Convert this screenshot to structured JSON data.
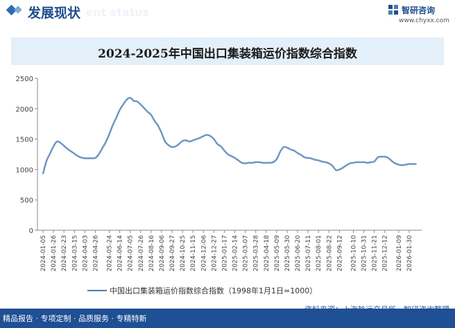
{
  "header": {
    "section_title": "发展现状",
    "watermark_text": "ent status",
    "brand_name": "智研咨询",
    "brand_url": "www.chyxx.com",
    "brand_color": "#1f4e8c"
  },
  "footer": {
    "tagline": "精品报告 · 专项定制 · 品质服务 · 专精特新",
    "source": "资料来源：上海航运交易所、智研咨询整理",
    "bg_color": "#1f4f94"
  },
  "chart_data": {
    "type": "line",
    "title": "2024-2025年中国出口集装箱运价指数综合指数",
    "xlabel": "",
    "ylabel": "",
    "ylim": [
      0,
      2500
    ],
    "yticks": [
      0,
      500,
      1000,
      1500,
      2000,
      2500
    ],
    "grid": false,
    "legend_position": "bottom",
    "line_color": "#6e96c4",
    "x": [
      "2024-01-05",
      "2024-01-12",
      "2024-01-19",
      "2024-01-26",
      "2024-02-02",
      "2024-02-09",
      "2024-02-23",
      "2024-03-01",
      "2024-03-08",
      "2024-03-15",
      "2024-03-22",
      "2024-03-29",
      "2024-04-03",
      "2024-04-12",
      "2024-04-19",
      "2024-04-26",
      "2024-04-30",
      "2024-05-11",
      "2024-05-17",
      "2024-05-24",
      "2024-05-31",
      "2024-06-07",
      "2024-06-14",
      "2024-06-21",
      "2024-06-28",
      "2024-07-05",
      "2024-07-12",
      "2024-07-19",
      "2024-07-26",
      "2024-08-02",
      "2024-08-09",
      "2024-08-16",
      "2024-08-23",
      "2024-08-30",
      "2024-09-06",
      "2024-09-13",
      "2024-09-20",
      "2024-09-27",
      "2024-10-11",
      "2024-10-18",
      "2024-10-25",
      "2024-11-01",
      "2024-11-08",
      "2024-11-15",
      "2024-11-22",
      "2024-11-29",
      "2024-12-06",
      "2024-12-13",
      "2024-12-20",
      "2024-12-27",
      "2025-01-03",
      "2025-01-10",
      "2025-01-17",
      "2025-01-24",
      "2025-02-07",
      "2025-02-14",
      "2025-02-21",
      "2025-02-28",
      "2025-03-07",
      "2025-03-14",
      "2025-03-21",
      "2025-03-28",
      "2025-04-03",
      "2025-04-11",
      "2025-04-18",
      "2025-04-25",
      "2025-04-30",
      "2025-05-09",
      "2025-05-16",
      "2025-05-23",
      "2025-05-30",
      "2025-06-06",
      "2025-06-13",
      "2025-06-20",
      "2025-06-27",
      "2025-07-04",
      "2025-07-11",
      "2025-07-18",
      "2025-07-25",
      "2025-08-01",
      "2025-08-08",
      "2025-08-15",
      "2025-08-22",
      "2025-08-29",
      "2025-09-05",
      "2025-09-12",
      "2025-09-19",
      "2025-09-26",
      "2025-09-30",
      "2025-10-10",
      "2025-10-17",
      "2025-10-24",
      "2025-10-31",
      "2025-11-07",
      "2025-11-14",
      "2025-11-21",
      "2025-11-28",
      "2025-12-05",
      "2025-12-12",
      "2025-12-19",
      "2025-12-26",
      "2026-01-01",
      "2026-01-09",
      "2026-01-16",
      "2026-01-23",
      "2026-01-30",
      "2026-02-06",
      "2026-02-13"
    ],
    "series": [
      {
        "name": "中国出口集装箱运价指数综合指数（1998年1月1日=1000）",
        "values": [
          930,
          1140,
          1260,
          1380,
          1460,
          1440,
          1390,
          1340,
          1300,
          1260,
          1220,
          1195,
          1185,
          1185,
          1185,
          1190,
          1250,
          1350,
          1450,
          1580,
          1730,
          1850,
          1980,
          2070,
          2150,
          2180,
          2130,
          2120,
          2070,
          2010,
          1950,
          1900,
          1800,
          1720,
          1600,
          1460,
          1400,
          1370,
          1380,
          1420,
          1470,
          1480,
          1460,
          1480,
          1500,
          1520,
          1550,
          1570,
          1550,
          1500,
          1420,
          1380,
          1310,
          1250,
          1220,
          1190,
          1150,
          1110,
          1100,
          1110,
          1110,
          1120,
          1120,
          1110,
          1110,
          1110,
          1120,
          1170,
          1290,
          1370,
          1360,
          1330,
          1310,
          1270,
          1240,
          1200,
          1190,
          1180,
          1160,
          1150,
          1130,
          1120,
          1100,
          1060,
          990,
          1000,
          1030,
          1070,
          1100,
          1110,
          1120,
          1120,
          1120,
          1110,
          1120,
          1130,
          1200,
          1210,
          1210,
          1190,
          1140,
          1100,
          1080,
          1070,
          1080,
          1090,
          1090,
          1090
        ]
      }
    ],
    "xtick_labels": [
      "2024-01-05",
      "2024-01-26",
      "2024-02-23",
      "2024-03-15",
      "2024-04-03",
      "2024-04-26",
      "2024-05-24",
      "2024-06-14",
      "2024-07-05",
      "2024-07-26",
      "2024-08-16",
      "2024-09-06",
      "2024-09-27",
      "2024-10-25",
      "2024-11-15",
      "2024-12-06",
      "2024-12-27",
      "2025-01-17",
      "2025-02-14",
      "2025-03-07",
      "2025-03-28",
      "2025-04-18",
      "2025-05-09",
      "2025-05-30",
      "2025-06-20",
      "2025-07-11",
      "2025-08-01",
      "2025-08-22",
      "2025-09-12",
      "2025-10-10",
      "2025-10-31",
      "2025-11-21",
      "2025-12-12",
      "2026-01-09",
      "2026-01-30"
    ]
  }
}
